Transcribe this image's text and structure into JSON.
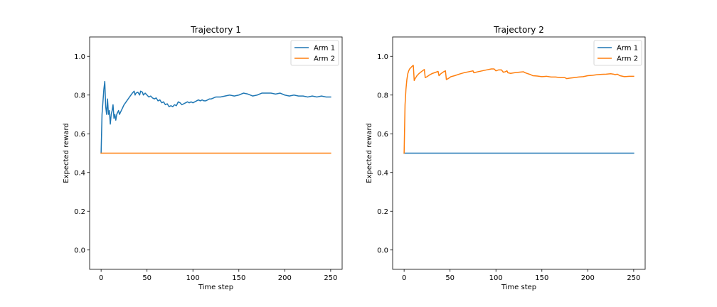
{
  "colors": {
    "arm1": "#1f77b4",
    "arm2": "#ff7f0e"
  },
  "chart_data": [
    {
      "type": "line",
      "title": "Trajectory 1",
      "xlabel": "Time step",
      "ylabel": "Expected reward",
      "xlim": [
        -12.5,
        262.5
      ],
      "ylim": [
        -0.1,
        1.1
      ],
      "xticks": [
        0,
        50,
        100,
        150,
        200,
        250
      ],
      "yticks": [
        0.0,
        0.2,
        0.4,
        0.6,
        0.8,
        1.0
      ],
      "xtick_labels": [
        "0",
        "50",
        "100",
        "150",
        "200",
        "250"
      ],
      "ytick_labels": [
        "0.0",
        "0.2",
        "0.4",
        "0.6",
        "0.8",
        "1.0"
      ],
      "grid": false,
      "legend": "upper right",
      "series": [
        {
          "name": "Arm 1",
          "color": "#1f77b4",
          "points": [
            [
              0,
              0.5
            ],
            [
              1,
              0.7
            ],
            [
              3,
              0.83
            ],
            [
              4,
              0.87
            ],
            [
              5,
              0.74
            ],
            [
              6,
              0.7
            ],
            [
              7,
              0.78
            ],
            [
              8,
              0.7
            ],
            [
              9,
              0.72
            ],
            [
              10,
              0.65
            ],
            [
              11,
              0.7
            ],
            [
              12,
              0.72
            ],
            [
              13,
              0.75
            ],
            [
              14,
              0.68
            ],
            [
              15,
              0.7
            ],
            [
              16,
              0.67
            ],
            [
              17,
              0.7
            ],
            [
              19,
              0.72
            ],
            [
              20,
              0.7
            ],
            [
              22,
              0.72
            ],
            [
              25,
              0.75
            ],
            [
              28,
              0.77
            ],
            [
              31,
              0.79
            ],
            [
              34,
              0.81
            ],
            [
              36,
              0.82
            ],
            [
              37,
              0.8
            ],
            [
              38,
              0.81
            ],
            [
              40,
              0.815
            ],
            [
              42,
              0.8
            ],
            [
              43,
              0.82
            ],
            [
              45,
              0.815
            ],
            [
              46,
              0.8
            ],
            [
              48,
              0.81
            ],
            [
              50,
              0.8
            ],
            [
              52,
              0.79
            ],
            [
              54,
              0.795
            ],
            [
              56,
              0.785
            ],
            [
              58,
              0.78
            ],
            [
              60,
              0.785
            ],
            [
              62,
              0.77
            ],
            [
              64,
              0.775
            ],
            [
              66,
              0.76
            ],
            [
              68,
              0.765
            ],
            [
              70,
              0.75
            ],
            [
              72,
              0.755
            ],
            [
              74,
              0.74
            ],
            [
              76,
              0.745
            ],
            [
              78,
              0.74
            ],
            [
              80,
              0.75
            ],
            [
              82,
              0.745
            ],
            [
              84,
              0.765
            ],
            [
              86,
              0.76
            ],
            [
              88,
              0.75
            ],
            [
              90,
              0.755
            ],
            [
              92,
              0.76
            ],
            [
              94,
              0.765
            ],
            [
              96,
              0.76
            ],
            [
              98,
              0.765
            ],
            [
              100,
              0.76
            ],
            [
              102,
              0.765
            ],
            [
              104,
              0.77
            ],
            [
              106,
              0.775
            ],
            [
              108,
              0.77
            ],
            [
              110,
              0.775
            ],
            [
              112,
              0.77
            ],
            [
              114,
              0.77
            ],
            [
              116,
              0.775
            ],
            [
              118,
              0.78
            ],
            [
              120,
              0.78
            ],
            [
              125,
              0.79
            ],
            [
              130,
              0.79
            ],
            [
              135,
              0.795
            ],
            [
              140,
              0.8
            ],
            [
              145,
              0.795
            ],
            [
              150,
              0.8
            ],
            [
              155,
              0.81
            ],
            [
              160,
              0.805
            ],
            [
              165,
              0.795
            ],
            [
              170,
              0.8
            ],
            [
              175,
              0.81
            ],
            [
              180,
              0.81
            ],
            [
              185,
              0.81
            ],
            [
              190,
              0.805
            ],
            [
              195,
              0.81
            ],
            [
              200,
              0.8
            ],
            [
              205,
              0.795
            ],
            [
              210,
              0.8
            ],
            [
              215,
              0.795
            ],
            [
              220,
              0.795
            ],
            [
              225,
              0.79
            ],
            [
              230,
              0.795
            ],
            [
              235,
              0.79
            ],
            [
              240,
              0.795
            ],
            [
              245,
              0.79
            ],
            [
              250,
              0.79
            ]
          ]
        },
        {
          "name": "Arm 2",
          "color": "#ff7f0e",
          "points": [
            [
              0,
              0.5
            ],
            [
              250,
              0.5
            ]
          ]
        }
      ]
    },
    {
      "type": "line",
      "title": "Trajectory 2",
      "xlabel": "Time step",
      "ylabel": "Expected reward",
      "xlim": [
        -12.5,
        262.5
      ],
      "ylim": [
        -0.1,
        1.1
      ],
      "xticks": [
        0,
        50,
        100,
        150,
        200,
        250
      ],
      "yticks": [
        0.0,
        0.2,
        0.4,
        0.6,
        0.8,
        1.0
      ],
      "xtick_labels": [
        "0",
        "50",
        "100",
        "150",
        "200",
        "250"
      ],
      "ytick_labels": [
        "0.0",
        "0.2",
        "0.4",
        "0.6",
        "0.8",
        "1.0"
      ],
      "grid": false,
      "legend": "upper right",
      "series": [
        {
          "name": "Arm 1",
          "color": "#1f77b4",
          "points": [
            [
              0,
              0.5
            ],
            [
              250,
              0.5
            ]
          ]
        },
        {
          "name": "Arm 2",
          "color": "#ff7f0e",
          "points": [
            [
              0,
              0.5
            ],
            [
              1,
              0.75
            ],
            [
              2,
              0.83
            ],
            [
              3,
              0.88
            ],
            [
              4,
              0.91
            ],
            [
              5,
              0.925
            ],
            [
              6,
              0.935
            ],
            [
              7,
              0.94
            ],
            [
              8,
              0.945
            ],
            [
              9,
              0.95
            ],
            [
              10,
              0.953
            ],
            [
              11,
              0.875
            ],
            [
              12,
              0.885
            ],
            [
              14,
              0.9
            ],
            [
              16,
              0.91
            ],
            [
              18,
              0.918
            ],
            [
              20,
              0.925
            ],
            [
              22,
              0.932
            ],
            [
              23,
              0.89
            ],
            [
              25,
              0.895
            ],
            [
              28,
              0.905
            ],
            [
              31,
              0.912
            ],
            [
              34,
              0.917
            ],
            [
              37,
              0.922
            ],
            [
              38,
              0.9
            ],
            [
              40,
              0.91
            ],
            [
              43,
              0.92
            ],
            [
              45,
              0.925
            ],
            [
              46,
              0.88
            ],
            [
              48,
              0.885
            ],
            [
              51,
              0.895
            ],
            [
              55,
              0.9
            ],
            [
              60,
              0.908
            ],
            [
              65,
              0.915
            ],
            [
              70,
              0.92
            ],
            [
              75,
              0.925
            ],
            [
              76,
              0.915
            ],
            [
              80,
              0.92
            ],
            [
              85,
              0.925
            ],
            [
              90,
              0.93
            ],
            [
              95,
              0.935
            ],
            [
              98,
              0.935
            ],
            [
              100,
              0.925
            ],
            [
              103,
              0.93
            ],
            [
              106,
              0.93
            ],
            [
              108,
              0.918
            ],
            [
              110,
              0.92
            ],
            [
              112,
              0.925
            ],
            [
              113,
              0.915
            ],
            [
              116,
              0.912
            ],
            [
              120,
              0.915
            ],
            [
              125,
              0.918
            ],
            [
              130,
              0.92
            ],
            [
              132,
              0.915
            ],
            [
              135,
              0.91
            ],
            [
              138,
              0.905
            ],
            [
              140,
              0.9
            ],
            [
              145,
              0.898
            ],
            [
              150,
              0.895
            ],
            [
              155,
              0.897
            ],
            [
              160,
              0.893
            ],
            [
              165,
              0.893
            ],
            [
              170,
              0.89
            ],
            [
              175,
              0.89
            ],
            [
              177,
              0.885
            ],
            [
              180,
              0.887
            ],
            [
              185,
              0.89
            ],
            [
              190,
              0.893
            ],
            [
              195,
              0.895
            ],
            [
              200,
              0.9
            ],
            [
              205,
              0.902
            ],
            [
              210,
              0.905
            ],
            [
              215,
              0.907
            ],
            [
              220,
              0.908
            ],
            [
              225,
              0.91
            ],
            [
              228,
              0.908
            ],
            [
              230,
              0.905
            ],
            [
              232,
              0.908
            ],
            [
              235,
              0.9
            ],
            [
              240,
              0.895
            ],
            [
              245,
              0.897
            ],
            [
              250,
              0.897
            ]
          ]
        }
      ]
    }
  ]
}
